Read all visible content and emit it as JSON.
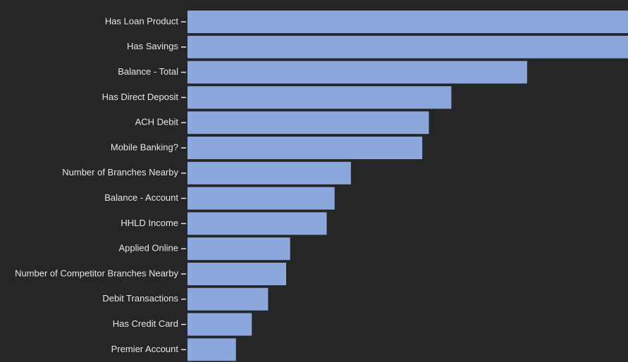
{
  "chart_data": {
    "type": "bar",
    "orientation": "horizontal",
    "title": "",
    "xlabel": "",
    "ylabel": "",
    "categories": [
      "Has Loan Product",
      "Has Savings",
      "Balance - Total",
      "Has Direct Deposit",
      "ACH Debit",
      "Mobile Banking?",
      "Number of Branches Nearby",
      "Balance - Account",
      "HHLD Income",
      "Applied Online",
      "Number of Competitor Branches Nearby",
      "Debit Transactions",
      "Has Credit Card",
      "Premier Account"
    ],
    "values": [
      100,
      100,
      77.1,
      59.9,
      54.8,
      53.3,
      37.1,
      33.4,
      31.6,
      23.3,
      22.4,
      18.3,
      14.6,
      11.0
    ],
    "xlim": [
      0,
      100
    ],
    "grid": false,
    "legend": "none",
    "bar_color": "#8ba7db",
    "background_color": "#262626",
    "text_color": "#e6e6e6"
  }
}
